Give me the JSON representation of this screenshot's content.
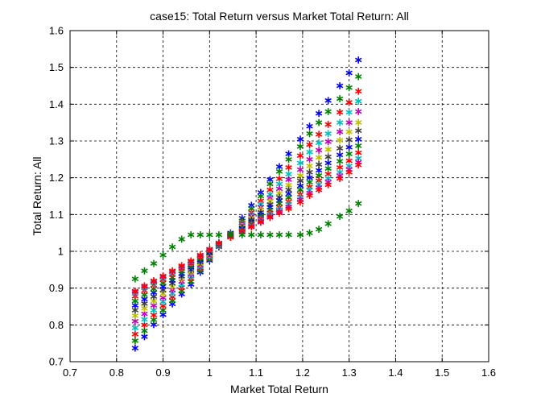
{
  "chart_data": {
    "type": "scatter",
    "title": "case15: Total Return versus Market Total Return: All",
    "xlabel": "Market Total Return",
    "ylabel": "Total Return: All",
    "xlim": [
      0.7,
      1.6
    ],
    "ylim": [
      0.7,
      1.6
    ],
    "xticks": [
      "0.7",
      "0.8",
      "0.9",
      "1",
      "1.1",
      "1.2",
      "1.3",
      "1.4",
      "1.5",
      "1.6"
    ],
    "yticks": [
      "0.7",
      "0.8",
      "0.9",
      "1",
      "1.1",
      "1.2",
      "1.3",
      "1.4",
      "1.5",
      "1.6"
    ],
    "grid": true,
    "marker": "asterisk",
    "x": [
      0.84,
      0.86,
      0.88,
      0.9,
      0.92,
      0.94,
      0.96,
      0.98,
      1.0,
      1.02,
      1.045,
      1.07,
      1.09,
      1.11,
      1.13,
      1.15,
      1.17,
      1.195,
      1.215,
      1.235,
      1.255,
      1.28,
      1.3,
      1.32
    ],
    "series": [
      {
        "color": "#0000ff",
        "values": [
          0.737,
          0.768,
          0.801,
          0.828,
          0.857,
          0.884,
          0.91,
          0.943,
          0.975,
          1.012,
          1.05,
          1.09,
          1.125,
          1.16,
          1.195,
          1.23,
          1.265,
          1.305,
          1.34,
          1.375,
          1.41,
          1.45,
          1.485,
          1.52
        ]
      },
      {
        "color": "#008000",
        "values": [
          0.757,
          0.784,
          0.814,
          0.84,
          0.866,
          0.893,
          0.918,
          0.948,
          0.978,
          1.013,
          1.048,
          1.083,
          1.116,
          1.15,
          1.183,
          1.217,
          1.25,
          1.285,
          1.32,
          1.35,
          1.38,
          1.415,
          1.445,
          1.475
        ]
      },
      {
        "color": "#ff0000",
        "values": [
          0.775,
          0.8,
          0.827,
          0.852,
          0.876,
          0.902,
          0.926,
          0.954,
          0.982,
          1.015,
          1.046,
          1.077,
          1.106,
          1.137,
          1.167,
          1.197,
          1.228,
          1.26,
          1.29,
          1.318,
          1.345,
          1.378,
          1.405,
          1.435
        ]
      },
      {
        "color": "#00bfbf",
        "values": [
          0.792,
          0.815,
          0.84,
          0.863,
          0.886,
          0.91,
          0.932,
          0.958,
          0.985,
          1.016,
          1.045,
          1.073,
          1.1,
          1.128,
          1.155,
          1.183,
          1.21,
          1.24,
          1.27,
          1.295,
          1.32,
          1.35,
          1.378,
          1.408
        ]
      },
      {
        "color": "#bf00bf",
        "values": [
          0.81,
          0.83,
          0.853,
          0.874,
          0.895,
          0.918,
          0.938,
          0.962,
          0.988,
          1.017,
          1.044,
          1.07,
          1.095,
          1.12,
          1.145,
          1.17,
          1.195,
          1.222,
          1.25,
          1.275,
          1.298,
          1.325,
          1.35,
          1.38
        ]
      },
      {
        "color": "#bfbf00",
        "values": [
          0.825,
          0.845,
          0.865,
          0.885,
          0.904,
          0.925,
          0.944,
          0.967,
          0.991,
          1.018,
          1.043,
          1.067,
          1.09,
          1.113,
          1.136,
          1.158,
          1.18,
          1.206,
          1.232,
          1.255,
          1.277,
          1.302,
          1.325,
          1.35
        ]
      },
      {
        "color": "#404040",
        "values": [
          0.84,
          0.858,
          0.877,
          0.895,
          0.913,
          0.932,
          0.95,
          0.971,
          0.994,
          1.019,
          1.042,
          1.064,
          1.085,
          1.106,
          1.127,
          1.147,
          1.167,
          1.192,
          1.215,
          1.236,
          1.257,
          1.28,
          1.303,
          1.328
        ]
      },
      {
        "color": "#0000ff",
        "values": [
          0.853,
          0.87,
          0.888,
          0.905,
          0.921,
          0.939,
          0.956,
          0.976,
          0.997,
          1.02,
          1.041,
          1.062,
          1.081,
          1.1,
          1.12,
          1.138,
          1.156,
          1.178,
          1.2,
          1.22,
          1.24,
          1.262,
          1.283,
          1.305
        ]
      },
      {
        "color": "#008000",
        "values": [
          0.865,
          0.882,
          0.898,
          0.914,
          0.929,
          0.946,
          0.961,
          0.98,
          1.0,
          1.021,
          1.04,
          1.059,
          1.077,
          1.095,
          1.112,
          1.13,
          1.146,
          1.167,
          1.188,
          1.206,
          1.225,
          1.245,
          1.265,
          1.287
        ]
      },
      {
        "color": "#ff0000",
        "values": [
          0.878,
          0.893,
          0.908,
          0.923,
          0.937,
          0.953,
          0.967,
          0.984,
          1.002,
          1.022,
          1.04,
          1.057,
          1.073,
          1.089,
          1.105,
          1.12,
          1.135,
          1.155,
          1.175,
          1.192,
          1.21,
          1.228,
          1.246,
          1.268
        ]
      },
      {
        "color": "#00bfbf",
        "values": [
          0.886,
          0.9,
          0.914,
          0.928,
          0.942,
          0.957,
          0.97,
          0.987,
          1.004,
          1.022,
          1.039,
          1.055,
          1.07,
          1.085,
          1.1,
          1.114,
          1.128,
          1.147,
          1.166,
          1.182,
          1.198,
          1.215,
          1.232,
          1.253
        ]
      },
      {
        "color": "#bf00bf",
        "values": [
          0.89,
          0.904,
          0.918,
          0.931,
          0.945,
          0.959,
          0.972,
          0.988,
          1.005,
          1.023,
          1.039,
          1.054,
          1.068,
          1.082,
          1.095,
          1.108,
          1.121,
          1.14,
          1.158,
          1.173,
          1.188,
          1.205,
          1.222,
          1.242
        ]
      },
      {
        "color": "#ff0000",
        "values": [
          0.892,
          0.906,
          0.92,
          0.933,
          0.947,
          0.961,
          0.974,
          0.99,
          1.006,
          1.023,
          1.038,
          1.052,
          1.066,
          1.079,
          1.092,
          1.104,
          1.116,
          1.134,
          1.152,
          1.167,
          1.181,
          1.198,
          1.215,
          1.235
        ]
      },
      {
        "color": "#008000",
        "values": [
          0.925,
          0.947,
          0.967,
          0.99,
          1.012,
          1.033,
          1.045,
          1.045,
          1.045,
          1.045,
          1.045,
          1.045,
          1.045,
          1.045,
          1.045,
          1.045,
          1.045,
          1.045,
          1.05,
          1.06,
          1.075,
          1.095,
          1.11,
          1.13
        ]
      }
    ]
  }
}
